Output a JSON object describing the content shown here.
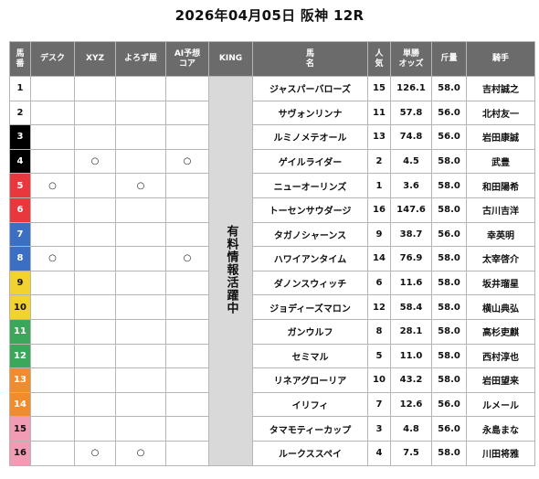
{
  "title": "2026年04月05日 阪神 12R",
  "headers": {
    "num": [
      "馬",
      "番"
    ],
    "desk": "デスク",
    "xyz": "XYZ",
    "yorozu": "よろず屋",
    "ai": [
      "AI予想",
      "コア"
    ],
    "king": "KING",
    "horse": [
      "馬",
      "名"
    ],
    "pop": [
      "人",
      "気"
    ],
    "odds": [
      "単勝",
      "オッズ"
    ],
    "weight": "斤量",
    "jockey": "騎手"
  },
  "king_text": "有料情報活躍中",
  "mark_symbol": "○",
  "colors": {
    "header_bg": "#6b6b6b",
    "king_bg": "#d9d9d9",
    "waku": [
      "#ffffff",
      "#000000",
      "#e8383d",
      "#3b6fc4",
      "#f2d22e",
      "#3aa75a",
      "#f08c2e",
      "#f29bb4"
    ]
  },
  "rows": [
    {
      "num": "1",
      "waku": 1,
      "desk": "",
      "xyz": "",
      "yorozu": "",
      "ai": "",
      "horse": "ジャスパーバローズ",
      "pop": "15",
      "odds": "126.1",
      "weight": "58.0",
      "jockey": "吉村誠之"
    },
    {
      "num": "2",
      "waku": 1,
      "desk": "",
      "xyz": "",
      "yorozu": "",
      "ai": "",
      "horse": "サヴォンリンナ",
      "pop": "11",
      "odds": "57.8",
      "weight": "56.0",
      "jockey": "北村友一"
    },
    {
      "num": "3",
      "waku": 2,
      "desk": "",
      "xyz": "",
      "yorozu": "",
      "ai": "",
      "horse": "ルミノメテオール",
      "pop": "13",
      "odds": "74.8",
      "weight": "56.0",
      "jockey": "岩田康誠"
    },
    {
      "num": "4",
      "waku": 2,
      "desk": "",
      "xyz": "○",
      "yorozu": "",
      "ai": "○",
      "horse": "ゲイルライダー",
      "pop": "2",
      "odds": "4.5",
      "weight": "58.0",
      "jockey": "武豊"
    },
    {
      "num": "5",
      "waku": 3,
      "desk": "○",
      "xyz": "",
      "yorozu": "○",
      "ai": "",
      "horse": "ニューオーリンズ",
      "pop": "1",
      "odds": "3.6",
      "weight": "58.0",
      "jockey": "和田陽希"
    },
    {
      "num": "6",
      "waku": 3,
      "desk": "",
      "xyz": "",
      "yorozu": "",
      "ai": "",
      "horse": "トーセンサウダージ",
      "pop": "16",
      "odds": "147.6",
      "weight": "58.0",
      "jockey": "古川吉洋"
    },
    {
      "num": "7",
      "waku": 4,
      "desk": "",
      "xyz": "",
      "yorozu": "",
      "ai": "",
      "horse": "タガノシャーンス",
      "pop": "9",
      "odds": "38.7",
      "weight": "56.0",
      "jockey": "幸英明"
    },
    {
      "num": "8",
      "waku": 4,
      "desk": "○",
      "xyz": "",
      "yorozu": "",
      "ai": "○",
      "horse": "ハワイアンタイム",
      "pop": "14",
      "odds": "76.9",
      "weight": "58.0",
      "jockey": "太宰啓介"
    },
    {
      "num": "9",
      "waku": 5,
      "desk": "",
      "xyz": "",
      "yorozu": "",
      "ai": "",
      "horse": "ダノンスウィッチ",
      "pop": "6",
      "odds": "11.6",
      "weight": "58.0",
      "jockey": "坂井瑠星"
    },
    {
      "num": "10",
      "waku": 5,
      "desk": "",
      "xyz": "",
      "yorozu": "",
      "ai": "",
      "horse": "ジョディーズマロン",
      "pop": "12",
      "odds": "58.4",
      "weight": "58.0",
      "jockey": "横山典弘"
    },
    {
      "num": "11",
      "waku": 6,
      "desk": "",
      "xyz": "",
      "yorozu": "",
      "ai": "",
      "horse": "ガンウルフ",
      "pop": "8",
      "odds": "28.1",
      "weight": "58.0",
      "jockey": "高杉吏麒"
    },
    {
      "num": "12",
      "waku": 6,
      "desk": "",
      "xyz": "",
      "yorozu": "",
      "ai": "",
      "horse": "セミマル",
      "pop": "5",
      "odds": "11.0",
      "weight": "58.0",
      "jockey": "西村淳也"
    },
    {
      "num": "13",
      "waku": 7,
      "desk": "",
      "xyz": "",
      "yorozu": "",
      "ai": "",
      "horse": "リネアグローリア",
      "pop": "10",
      "odds": "43.2",
      "weight": "58.0",
      "jockey": "岩田望来"
    },
    {
      "num": "14",
      "waku": 7,
      "desk": "",
      "xyz": "",
      "yorozu": "",
      "ai": "",
      "horse": "イリフィ",
      "pop": "7",
      "odds": "12.6",
      "weight": "56.0",
      "jockey": "ルメール"
    },
    {
      "num": "15",
      "waku": 8,
      "desk": "",
      "xyz": "",
      "yorozu": "",
      "ai": "",
      "horse": "タマモティーカップ",
      "pop": "3",
      "odds": "4.8",
      "weight": "56.0",
      "jockey": "永島まな"
    },
    {
      "num": "16",
      "waku": 8,
      "desk": "",
      "xyz": "○",
      "yorozu": "○",
      "ai": "",
      "horse": "ルークススペイ",
      "pop": "4",
      "odds": "7.5",
      "weight": "58.0",
      "jockey": "川田将雅"
    }
  ]
}
